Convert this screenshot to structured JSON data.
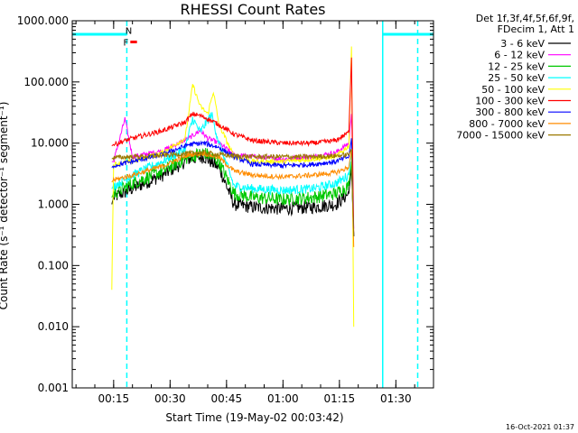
{
  "chart_data": {
    "type": "line",
    "title": "RHESSI Count Rates",
    "xlabel": "Start Time (19-May-02 00:03:42)",
    "ylabel": "Count Rate (s⁻¹ detector⁻¹ segment⁻¹)",
    "y_scale": "log",
    "ylim": [
      0.001,
      1000
    ],
    "y_ticks": [
      "0.001",
      "0.010",
      "0.100",
      "1.000",
      "10.000",
      "100.000",
      "1000.000"
    ],
    "xlim_minutes": [
      4,
      100
    ],
    "x_ticks": [
      {
        "minute": 15,
        "label": "00:15"
      },
      {
        "minute": 30,
        "label": "00:30"
      },
      {
        "minute": 45,
        "label": "00:45"
      },
      {
        "minute": 60,
        "label": "01:00"
      },
      {
        "minute": 75,
        "label": "01:15"
      },
      {
        "minute": 90,
        "label": "01:30"
      }
    ],
    "legend_header": [
      "Det 1f,3f,4f,5f,6f,9f,",
      "FDecim 1, Att 1"
    ],
    "legend_placement": "right",
    "series": [
      {
        "name": "3 - 6 keV",
        "color": "#000000",
        "x": [
          14.5,
          15,
          20,
          28,
          35,
          39,
          43,
          47,
          52,
          60,
          68,
          74,
          77.5,
          78.2,
          78.8
        ],
        "y": [
          1.0,
          1.3,
          1.8,
          3.0,
          5.5,
          6.0,
          4.0,
          1.0,
          0.9,
          0.85,
          0.9,
          1.0,
          1.5,
          4.0,
          0.3
        ]
      },
      {
        "name": "6 - 12 keV",
        "color": "#ff00ff",
        "x": [
          14.5,
          15,
          18,
          20,
          28,
          35,
          38,
          40,
          43,
          47,
          52,
          60,
          68,
          74,
          77.5,
          78.2,
          78.8
        ],
        "y": [
          5.0,
          5.0,
          25.0,
          6.0,
          7.5,
          12.0,
          16.0,
          12.0,
          10.0,
          6.5,
          6.0,
          5.5,
          6.0,
          7.0,
          10.0,
          30.0,
          0.4
        ]
      },
      {
        "name": "12 - 25 keV",
        "color": "#00c800",
        "x": [
          14.5,
          15,
          20,
          28,
          35,
          39,
          43,
          47,
          52,
          60,
          68,
          74,
          77.5,
          78.2,
          78.8
        ],
        "y": [
          1.3,
          1.5,
          2.2,
          3.5,
          6.0,
          7.0,
          5.0,
          1.5,
          1.3,
          1.2,
          1.3,
          1.5,
          2.0,
          5.0,
          0.3
        ]
      },
      {
        "name": "25 - 50 keV",
        "color": "#00ffff",
        "x": [
          14.5,
          15,
          20,
          28,
          34,
          36,
          38,
          41,
          43,
          47,
          52,
          60,
          68,
          74,
          77.5,
          78.2,
          78.8
        ],
        "y": [
          1.8,
          2.0,
          3.0,
          5.0,
          8.0,
          25.0,
          15.0,
          30.0,
          10.0,
          2.0,
          1.8,
          1.7,
          1.8,
          2.2,
          3.0,
          8.0,
          0.3
        ]
      },
      {
        "name": "50 - 100 keV",
        "color": "#ffff00",
        "x": [
          14.5,
          15,
          20,
          28,
          34,
          36,
          38,
          40,
          41.5,
          43,
          47,
          52,
          60,
          68,
          74,
          77.5,
          78.2,
          78.8
        ],
        "y": [
          0.04,
          4.5,
          5.0,
          7.0,
          12.0,
          90.0,
          40.0,
          30.0,
          70.0,
          20.0,
          6.0,
          5.0,
          5.0,
          5.5,
          6.0,
          9.0,
          380.0,
          0.01
        ]
      },
      {
        "name": "100 - 300 keV",
        "color": "#ff0000",
        "x": [
          14.5,
          15,
          20,
          28,
          34,
          36,
          38,
          40,
          43,
          47,
          52,
          60,
          68,
          74,
          77.5,
          78.2,
          78.8
        ],
        "y": [
          9.0,
          9.5,
          12.0,
          16.0,
          22.0,
          30.0,
          28.0,
          25.0,
          20.0,
          14.0,
          11.0,
          10.0,
          10.0,
          11.0,
          15.0,
          250.0,
          0.3
        ]
      },
      {
        "name": "300 - 800 keV",
        "color": "#0000ff",
        "x": [
          14.5,
          15,
          20,
          28,
          35,
          39,
          43,
          47,
          52,
          60,
          68,
          74,
          77.5,
          78.2,
          78.8
        ],
        "y": [
          4.0,
          4.3,
          5.0,
          6.5,
          9.5,
          10.0,
          8.5,
          6.0,
          4.5,
          4.3,
          4.5,
          5.0,
          6.0,
          12.0,
          0.3
        ]
      },
      {
        "name": "800 - 7000 keV",
        "color": "#ff8c00",
        "x": [
          14.5,
          15,
          20,
          28,
          35,
          39,
          43,
          47,
          52,
          60,
          68,
          74,
          77.5,
          78.2,
          78.8
        ],
        "y": [
          2.3,
          2.5,
          3.0,
          4.2,
          6.5,
          6.8,
          5.8,
          3.5,
          3.0,
          2.8,
          3.0,
          3.3,
          4.0,
          8.0,
          0.2
        ]
      },
      {
        "name": "7000 - 15000 keV",
        "color": "#9b7800",
        "x": [
          14.5,
          15,
          20,
          28,
          35,
          39,
          43,
          47,
          52,
          60,
          68,
          74,
          77.5,
          78.2,
          78.8
        ],
        "y": [
          5.5,
          5.8,
          6.0,
          6.3,
          6.8,
          7.0,
          6.5,
          6.2,
          6.0,
          6.0,
          6.0,
          6.2,
          6.5,
          8.0,
          0.3
        ]
      }
    ],
    "vertical_markers": [
      {
        "minute": 18.5,
        "color": "#00ffff",
        "style": "dashed"
      },
      {
        "minute": 86.5,
        "color": "#00ffff",
        "style": "solid"
      },
      {
        "minute": 95.8,
        "color": "#00ffff",
        "style": "dashed"
      }
    ],
    "flag_bars": [
      {
        "label": "",
        "color": "#00ffff",
        "x_start": 4,
        "x_end": 18.5,
        "y": 600
      },
      {
        "label": "",
        "color": "#00ffff",
        "x_start": 86.5,
        "x_end": 100,
        "y": 600
      },
      {
        "label": "N",
        "color": "#00ffff",
        "x_start": 18.9,
        "x_end": 19.1,
        "y": 700
      },
      {
        "label": "F",
        "color": "#ff0000",
        "x_start": 19.2,
        "x_end": 21.2,
        "y": 450
      }
    ]
  },
  "footer_timestamp": "16-Oct-2021 01:37"
}
